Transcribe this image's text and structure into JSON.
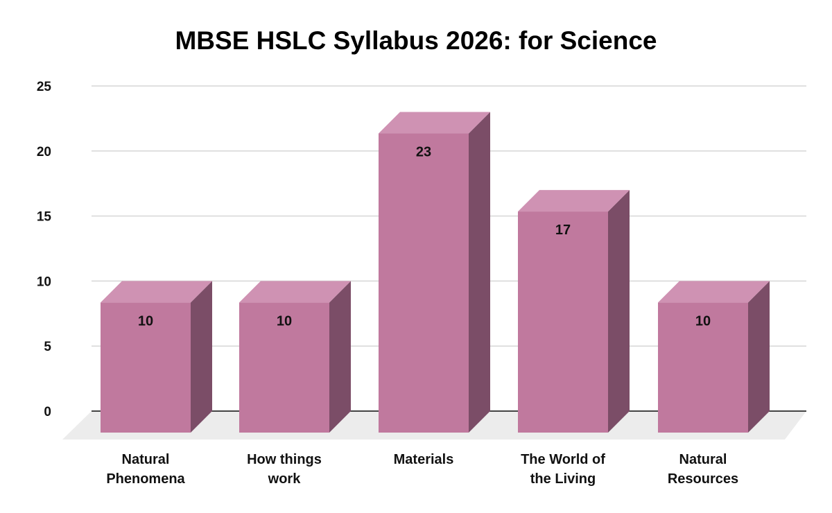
{
  "chart_data": {
    "type": "bar",
    "title": "MBSE HSLC Syllabus 2026: for Science",
    "xlabel": "",
    "ylabel": "",
    "categories": [
      "Natural Phenomena",
      "How things work",
      "Materials",
      "The World of the Living",
      "Natural Resources"
    ],
    "category_lines": [
      [
        "Natural",
        "Phenomena"
      ],
      [
        "How things",
        "work"
      ],
      [
        "Materials"
      ],
      [
        "The World of",
        "the Living"
      ],
      [
        "Natural",
        "Resources"
      ]
    ],
    "values": [
      10,
      10,
      23,
      17,
      10
    ],
    "data_labels": [
      "10",
      "10",
      "23",
      "17",
      "10"
    ],
    "ylim": [
      0,
      25
    ],
    "yticks": [
      0,
      5,
      10,
      15,
      20,
      25
    ],
    "grid": true,
    "legend": "none",
    "style": "3d-column"
  },
  "colors": {
    "bar_front": "#c0799e",
    "bar_top": "#cf92b3",
    "bar_side": "#7b4d67",
    "floor": "#ececec",
    "grid": "#d6d6d6",
    "axis": "#444444"
  }
}
